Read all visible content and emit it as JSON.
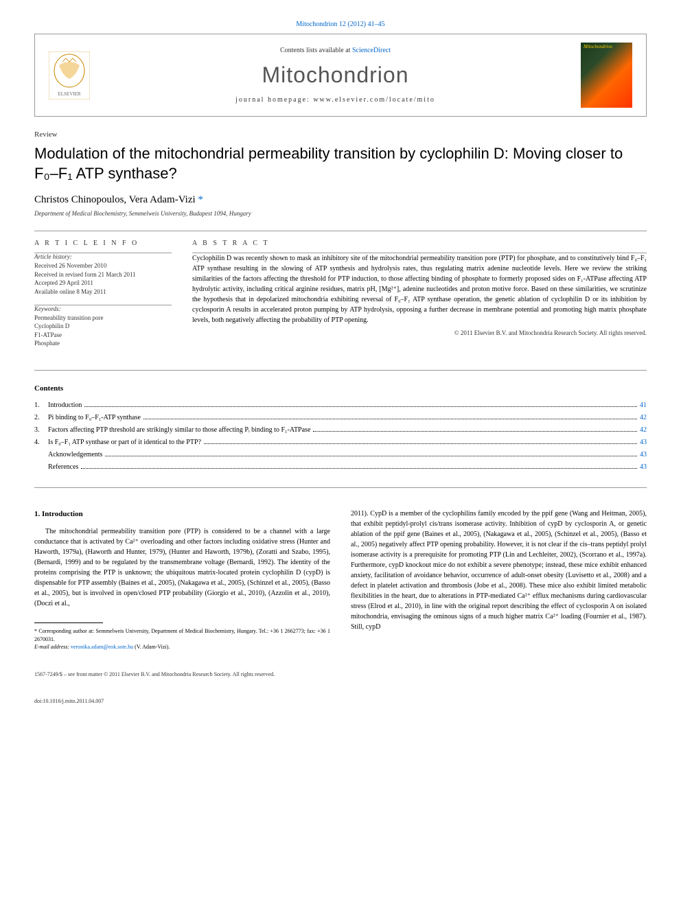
{
  "top_link": "Mitochondrion 12 (2012) 41–45",
  "header": {
    "contents_prefix": "Contents lists available at ",
    "contents_link": "ScienceDirect",
    "journal_name": "Mitochondrion",
    "homepage_prefix": "journal homepage: ",
    "homepage_url": "www.elsevier.com/locate/mito",
    "cover_label": "Mitochondrion"
  },
  "article": {
    "type": "Review",
    "title": "Modulation of the mitochondrial permeability transition by cyclophilin D: Moving closer to F₀–F₁ ATP synthase?",
    "authors": "Christos Chinopoulos, Vera Adam-Vizi ",
    "asterisk": "*",
    "affiliation": "Department of Medical Biochemistry, Semmelweis University, Budapest 1094, Hungary"
  },
  "article_info": {
    "heading": "A R T I C L E   I N F O",
    "history_label": "Article history:",
    "history": "Received 26 November 2010\nReceived in revised form 21 March 2011\nAccepted 29 April 2011\nAvailable online 8 May 2011",
    "keywords_label": "Keywords:",
    "keywords": "Permeability transition pore\nCyclophilin D\nF1-ATPase\nPhosphate"
  },
  "abstract": {
    "heading": "A B S T R A C T",
    "text": "Cyclophilin D was recently shown to mask an inhibitory site of the mitochondrial permeability transition pore (PTP) for phosphate, and to constitutively bind F₀–F₁ ATP synthase resulting in the slowing of ATP synthesis and hydrolysis rates, thus regulating matrix adenine nucleotide levels. Here we review the striking similarities of the factors affecting the threshold for PTP induction, to those affecting binding of phosphate to formerly proposed sides on F₁-ATPase affecting ATP hydrolytic activity, including critical arginine residues, matrix pH, [Mg²⁺], adenine nucleotides and proton motive force. Based on these similarities, we scrutinize the hypothesis that in depolarized mitochondria exhibiting reversal of F₀–F₁ ATP synthase operation, the genetic ablation of cyclophilin D or its inhibition by cyclosporin A results in accelerated proton pumping by ATP hydrolysis, opposing a further decrease in membrane potential and promoting high matrix phosphate levels, both negatively affecting the probability of PTP opening.",
    "copyright": "© 2011 Elsevier B.V. and Mitochondria Research Society. All rights reserved."
  },
  "contents": {
    "heading": "Contents",
    "items": [
      {
        "num": "1.",
        "title": "Introduction",
        "page": "41"
      },
      {
        "num": "2.",
        "title": "Pi binding to F₀–F₁-ATP synthase",
        "page": "42"
      },
      {
        "num": "3.",
        "title": "Factors affecting PTP threshold are strikingly similar to those affecting Pᵢ binding to F₁-ATPase",
        "page": "42"
      },
      {
        "num": "4.",
        "title": "Is F₀–F₁ ATP synthase or part of it identical to the PTP?",
        "page": "43"
      },
      {
        "num": "",
        "title": "Acknowledgements",
        "page": "43"
      },
      {
        "num": "",
        "title": "References",
        "page": "43"
      }
    ]
  },
  "body": {
    "section_heading": "1. Introduction",
    "col1": "The mitochondrial permeability transition pore (PTP) is considered to be a channel with a large conductance that is activated by Ca²⁺ overloading and other factors including oxidative stress (Hunter and Haworth, 1979a), (Haworth and Hunter, 1979), (Hunter and Haworth, 1979b), (Zoratti and Szabo, 1995), (Bernardi, 1999) and to be regulated by the transmembrane voltage (Bernardi, 1992). The identity of the proteins comprising the PTP is unknown; the ubiquitous matrix-located protein cyclophilin D (cypD) is dispensable for PTP assembly (Baines et al., 2005), (Nakagawa et al., 2005), (Schinzel et al., 2005), (Basso et al., 2005), but is involved in open/closed PTP probability (Giorgio et al., 2010), (Azzolin et al., 2010), (Doczi et al.,",
    "col2": "2011). CypD is a member of the cyclophilins family encoded by the ppif gene (Wang and Heitman, 2005), that exhibit peptidyl-prolyl cis/trans isomerase activity. Inhibition of cypD by cyclosporin A, or genetic ablation of the ppif gene (Baines et al., 2005), (Nakagawa et al., 2005), (Schinzel et al., 2005), (Basso et al., 2005) negatively affect PTP opening probability. However, it is not clear if the cis–trans peptidyl prolyl isomerase activity is a prerequisite for promoting PTP (Lin and Lechleiter, 2002), (Scorrano et al., 1997a). Furthermore, cypD knockout mice do not exhibit a severe phenotype; instead, these mice exhibit enhanced anxiety, facilitation of avoidance behavior, occurrence of adult-onset obesity (Luvisetto et al., 2008) and a defect in platelet activation and thrombosis (Jobe et al., 2008). These mice also exhibit limited metabolic flexibilities in the heart, due to alterations in PTP-mediated Ca²⁺ efflux mechanisms during cardiovascular stress (Elrod et al., 2010), in line with the original report describing the effect of cyclosporin A on isolated mitochondria, envisaging the ominous signs of a much higher matrix Ca²⁺ loading (Fournier et al., 1987). Still, cypD"
  },
  "footnote": {
    "corr_label": "* Corresponding author at: Semmelweis University, Department of Medical Biochemistry, Hungary. Tel.: +36 1 2662773; fax: +36 1 2670031.",
    "email_label": "E-mail address: ",
    "email": "veronika.adam@eok.sote.hu",
    "email_suffix": " (V. Adam-Vizi)."
  },
  "footer": {
    "line1": "1567-7249/$ – see front matter © 2011 Elsevier B.V. and Mitochondria Research Society. All rights reserved.",
    "line2": "doi:10.1016/j.mito.2011.04.007"
  },
  "colors": {
    "link": "#0066cc",
    "text": "#000000",
    "muted": "#333333",
    "border": "#999999",
    "background": "#ffffff"
  }
}
